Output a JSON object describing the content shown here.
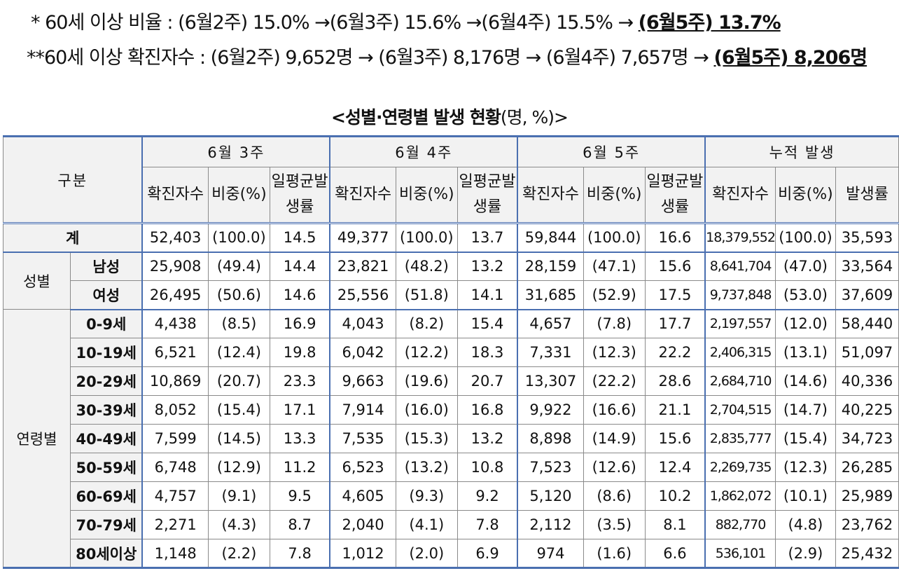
{
  "notes": {
    "ratio": {
      "prefix": "* 60세 이상 비율 : ",
      "body": "(6월2주) 15.0% →(6월3주) 15.6% →(6월4주) 15.5% → ",
      "latest": "(6월5주) 13.7%"
    },
    "count": {
      "prefix": "**60세 이상 확진자수 :  ",
      "body": "(6월2주) 9,652명 →  (6월3주) 8,176명 →  (6월4주) 7,657명 → ",
      "latest": "(6월5주) 8,206명"
    }
  },
  "table": {
    "caption": "<성별·연령별 발생 현황",
    "caption_unit": "(명, %)>",
    "corner": "구분",
    "periods": [
      "6월 3주",
      "6월 4주",
      "6월 5주",
      "누적 발생"
    ],
    "subheaders": [
      "확진자수",
      "비중(%)",
      "일평균발생률",
      "확진자수",
      "비중(%)",
      "일평균발생률",
      "확진자수",
      "비중(%)",
      "일평균발생률",
      "확진자수",
      "비중(%)",
      "발생률"
    ],
    "total": {
      "label": "계",
      "values": [
        "52,403",
        "(100.0)",
        "14.5",
        "49,377",
        "(100.0)",
        "13.7",
        "59,844",
        "(100.0)",
        "16.6",
        "18,379,552",
        "(100.0)",
        "35,593"
      ]
    },
    "sex": {
      "group": "성별",
      "rows": [
        {
          "label": "남성",
          "values": [
            "25,908",
            "(49.4)",
            "14.4",
            "23,821",
            "(48.2)",
            "13.2",
            "28,159",
            "(47.1)",
            "15.6",
            "8,641,704",
            "(47.0)",
            "33,564"
          ]
        },
        {
          "label": "여성",
          "values": [
            "26,495",
            "(50.6)",
            "14.6",
            "25,556",
            "(51.8)",
            "14.1",
            "31,685",
            "(52.9)",
            "17.5",
            "9,737,848",
            "(53.0)",
            "37,609"
          ]
        }
      ]
    },
    "age": {
      "group": "연령별",
      "rows": [
        {
          "label": "0-9세",
          "values": [
            "4,438",
            "(8.5)",
            "16.9",
            "4,043",
            "(8.2)",
            "15.4",
            "4,657",
            "(7.8)",
            "17.7",
            "2,197,557",
            "(12.0)",
            "58,440"
          ]
        },
        {
          "label": "10-19세",
          "values": [
            "6,521",
            "(12.4)",
            "19.8",
            "6,042",
            "(12.2)",
            "18.3",
            "7,331",
            "(12.3)",
            "22.2",
            "2,406,315",
            "(13.1)",
            "51,097"
          ]
        },
        {
          "label": "20-29세",
          "values": [
            "10,869",
            "(20.7)",
            "23.3",
            "9,663",
            "(19.6)",
            "20.7",
            "13,307",
            "(22.2)",
            "28.6",
            "2,684,710",
            "(14.6)",
            "40,336"
          ]
        },
        {
          "label": "30-39세",
          "values": [
            "8,052",
            "(15.4)",
            "17.1",
            "7,914",
            "(16.0)",
            "16.8",
            "9,922",
            "(16.6)",
            "21.1",
            "2,704,515",
            "(14.7)",
            "40,225"
          ]
        },
        {
          "label": "40-49세",
          "values": [
            "7,599",
            "(14.5)",
            "13.3",
            "7,535",
            "(15.3)",
            "13.2",
            "8,898",
            "(14.9)",
            "15.6",
            "2,835,777",
            "(15.4)",
            "34,723"
          ]
        },
        {
          "label": "50-59세",
          "values": [
            "6,748",
            "(12.9)",
            "11.2",
            "6,523",
            "(13.2)",
            "10.8",
            "7,523",
            "(12.6)",
            "12.4",
            "2,269,735",
            "(12.3)",
            "26,285"
          ]
        },
        {
          "label": "60-69세",
          "values": [
            "4,757",
            "(9.1)",
            "9.5",
            "4,605",
            "(9.3)",
            "9.2",
            "5,120",
            "(8.6)",
            "10.2",
            "1,862,072",
            "(10.1)",
            "25,989"
          ]
        },
        {
          "label": "70-79세",
          "values": [
            "2,271",
            "(4.3)",
            "8.7",
            "2,040",
            "(4.1)",
            "7.8",
            "2,112",
            "(3.5)",
            "8.1",
            "882,770",
            "(4.8)",
            "23,762"
          ]
        },
        {
          "label": "80세이상",
          "values": [
            "1,148",
            "(2.2)",
            "7.8",
            "1,012",
            "(2.0)",
            "6.9",
            "974",
            "(1.6)",
            "6.6",
            "536,101",
            "(2.9)",
            "25,432"
          ]
        }
      ]
    },
    "colors": {
      "frame": "#4a6fb0",
      "header_bg": "#f2f2f2",
      "grid": "#8a8a8a"
    }
  }
}
